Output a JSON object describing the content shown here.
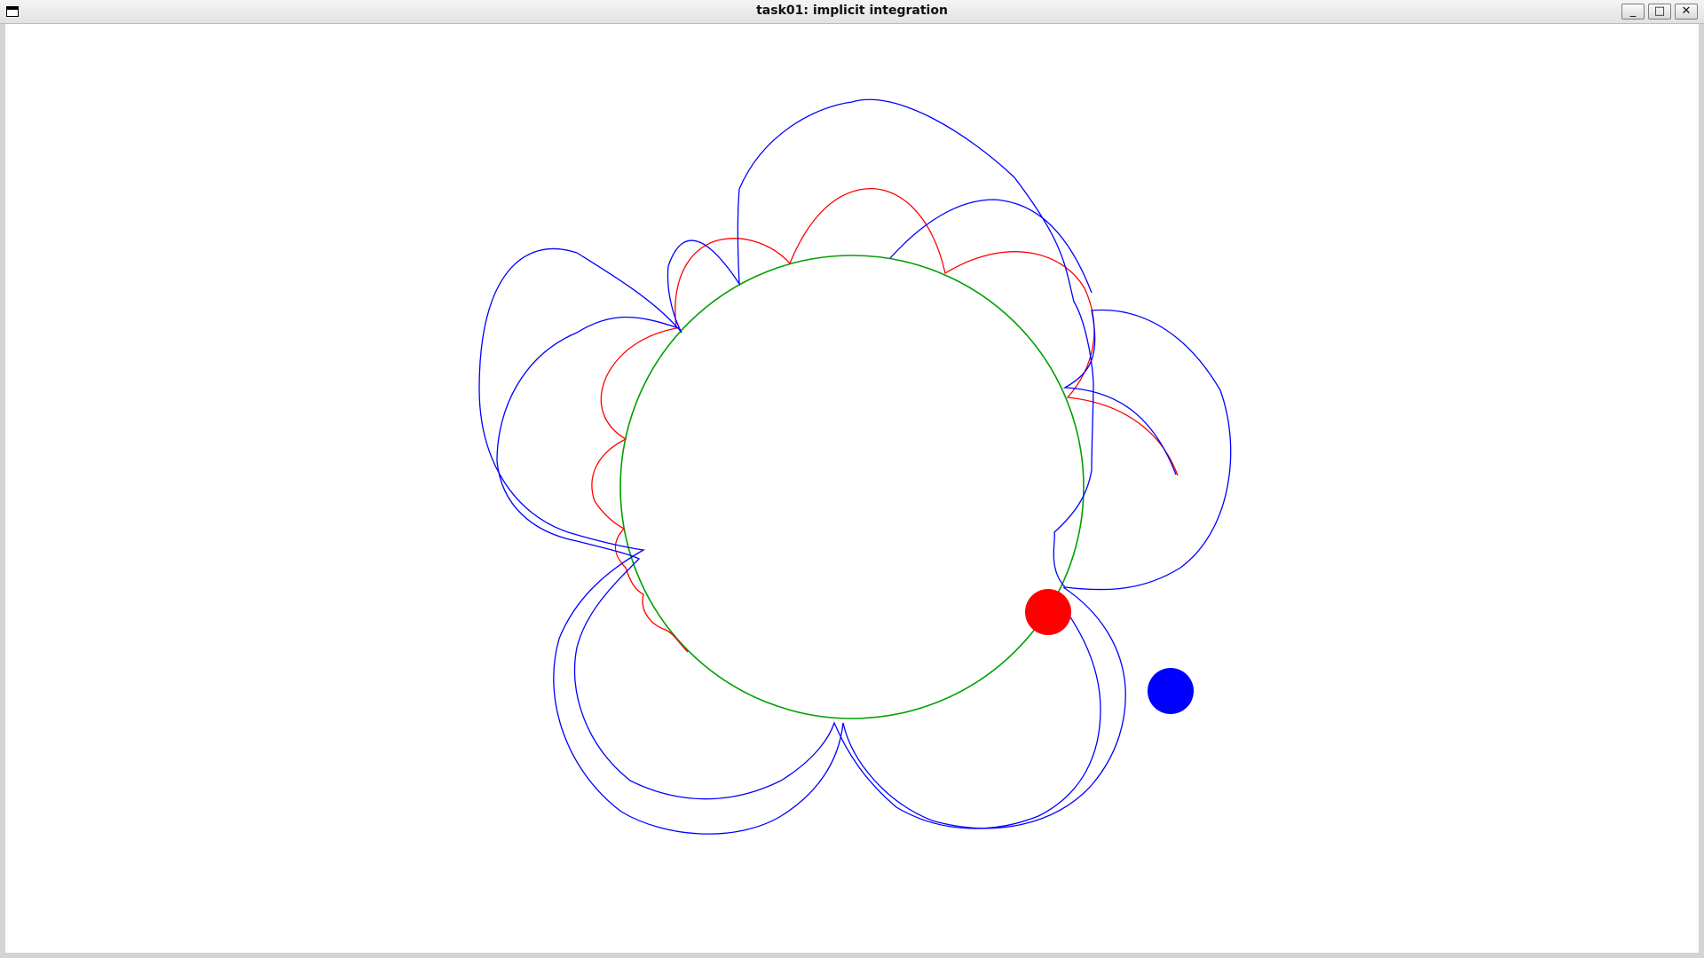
{
  "window": {
    "title": "task01: implicit integration",
    "buttons": {
      "minimize": "_",
      "maximize": "□",
      "close": "✕"
    }
  },
  "scene": {
    "colors": {
      "background": "#ffffff",
      "explicit_trajectory": "#0000ff",
      "implicit_trajectory": "#ff0000",
      "reference_circle": "#00a000",
      "explicit_particle": "#0000ff",
      "implicit_particle": "#ff0000"
    }
  }
}
